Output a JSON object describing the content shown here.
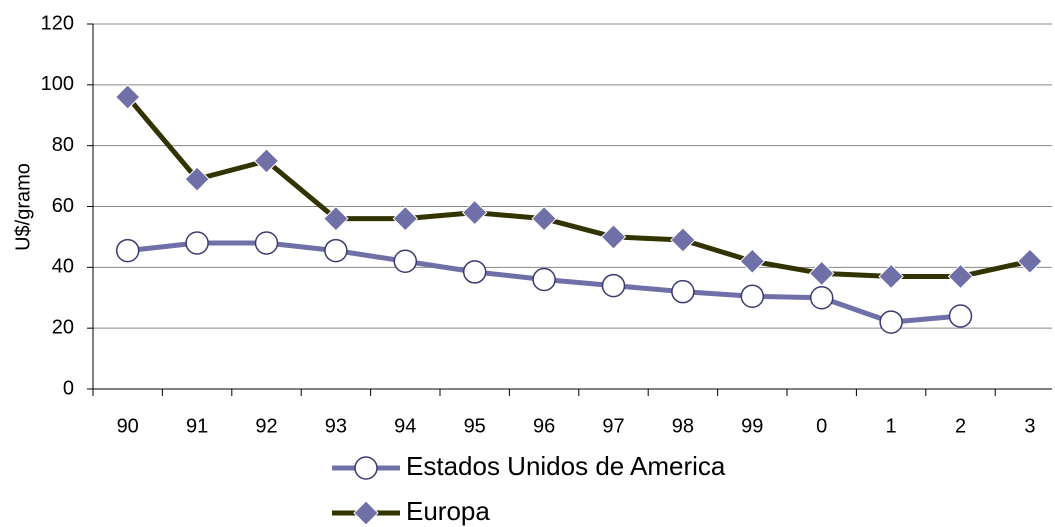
{
  "chart_data": {
    "type": "line",
    "y_label": "U$/gramo",
    "categories": [
      "90",
      "91",
      "92",
      "93",
      "94",
      "95",
      "96",
      "97",
      "98",
      "99",
      "0",
      "1",
      "2",
      "3"
    ],
    "series": [
      {
        "name": "Estados Unidos de America",
        "color": "#7070a8",
        "marker": "circle",
        "marker_color": "#ffffff",
        "values": [
          45.5,
          48,
          48,
          45.5,
          42,
          38.5,
          36,
          34,
          32,
          30.5,
          30,
          22,
          24,
          null
        ]
      },
      {
        "name": "Europa",
        "color": "#333300",
        "marker": "diamond",
        "marker_color": "#7070a8",
        "values": [
          96,
          69,
          75,
          56,
          56,
          58,
          56,
          50,
          49,
          42,
          38,
          37,
          37,
          42
        ]
      }
    ],
    "ylim": [
      0,
      120
    ],
    "yticks": [
      0,
      20,
      40,
      60,
      80,
      100,
      120
    ],
    "grid": true,
    "legend": "bottom"
  }
}
